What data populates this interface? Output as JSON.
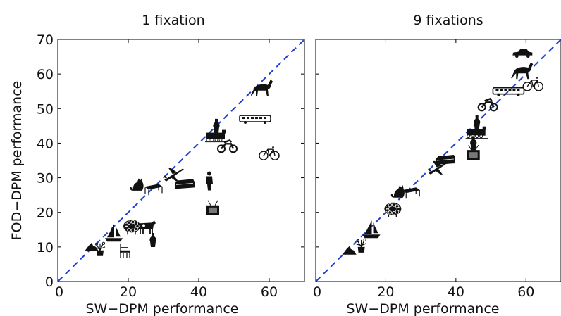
{
  "chart_data": [
    {
      "type": "scatter",
      "title": "1 fixation",
      "xlabel": "SW−DPM performance",
      "ylabel": "FOD−DPM performance",
      "xlim": [
        0,
        70
      ],
      "ylim": [
        0,
        70
      ],
      "xticks": [
        "0",
        "20",
        "40",
        "60"
      ],
      "yticks": [
        "0",
        "10",
        "20",
        "30",
        "40",
        "50",
        "60",
        "70"
      ],
      "diagonal": "y = x",
      "points": [
        {
          "icon": "horse-icon",
          "x": 58,
          "y": 56
        },
        {
          "icon": "bus-icon",
          "x": 56,
          "y": 47
        },
        {
          "icon": "bottle-icon",
          "x": 45,
          "y": 45
        },
        {
          "icon": "train-icon",
          "x": 45,
          "y": 42
        },
        {
          "icon": "motorbike-icon",
          "x": 48,
          "y": 39
        },
        {
          "icon": "bicycle-icon",
          "x": 60,
          "y": 37
        },
        {
          "icon": "person-icon",
          "x": 43,
          "y": 29
        },
        {
          "icon": "aeroplane-icon",
          "x": 33,
          "y": 31
        },
        {
          "icon": "sofa-icon",
          "x": 36,
          "y": 28
        },
        {
          "icon": "cat-icon",
          "x": 23,
          "y": 28
        },
        {
          "icon": "table-icon",
          "x": 27,
          "y": 27
        },
        {
          "icon": "tvmonitor-icon",
          "x": 44,
          "y": 21
        },
        {
          "icon": "sheep-icon",
          "x": 21,
          "y": 16
        },
        {
          "icon": "cow-icon",
          "x": 25,
          "y": 16
        },
        {
          "icon": "boat-icon",
          "x": 16,
          "y": 14
        },
        {
          "icon": "bottle-icon",
          "x": 27,
          "y": 12
        },
        {
          "icon": "chair-icon",
          "x": 19,
          "y": 9
        },
        {
          "icon": "dog-icon",
          "x": 10,
          "y": 10
        },
        {
          "icon": "pottedplant-icon",
          "x": 12,
          "y": 9
        }
      ]
    },
    {
      "type": "scatter",
      "title": "9 fixations",
      "xlabel": "SW−DPM performance",
      "ylabel": "",
      "xlim": [
        0,
        70
      ],
      "ylim": [
        0,
        70
      ],
      "xticks": [
        "0",
        "20",
        "40",
        "60"
      ],
      "diagonal": "y = x",
      "points": [
        {
          "icon": "car-icon",
          "x": 59,
          "y": 66
        },
        {
          "icon": "horse-icon",
          "x": 59,
          "y": 61
        },
        {
          "icon": "bicycle-icon",
          "x": 62,
          "y": 57
        },
        {
          "icon": "bus-icon",
          "x": 55,
          "y": 55
        },
        {
          "icon": "motorbike-icon",
          "x": 49,
          "y": 51
        },
        {
          "icon": "bottle-icon",
          "x": 46,
          "y": 46
        },
        {
          "icon": "train-icon",
          "x": 46,
          "y": 43
        },
        {
          "icon": "bottle-icon",
          "x": 45,
          "y": 40
        },
        {
          "icon": "tvmonitor-icon",
          "x": 45,
          "y": 37
        },
        {
          "icon": "sofa-icon",
          "x": 37,
          "y": 35
        },
        {
          "icon": "aeroplane-icon",
          "x": 35,
          "y": 33
        },
        {
          "icon": "table-icon",
          "x": 27,
          "y": 26
        },
        {
          "icon": "cat-icon",
          "x": 24,
          "y": 26
        },
        {
          "icon": "sheep-icon",
          "x": 22,
          "y": 21
        },
        {
          "icon": "boat-icon",
          "x": 16,
          "y": 15
        },
        {
          "icon": "dog-icon",
          "x": 10,
          "y": 9
        },
        {
          "icon": "pottedplant-icon",
          "x": 13,
          "y": 10
        }
      ]
    }
  ],
  "colors": {
    "diagonal": "#1f3fd1",
    "icon": "#111111",
    "axis": "#000000"
  }
}
